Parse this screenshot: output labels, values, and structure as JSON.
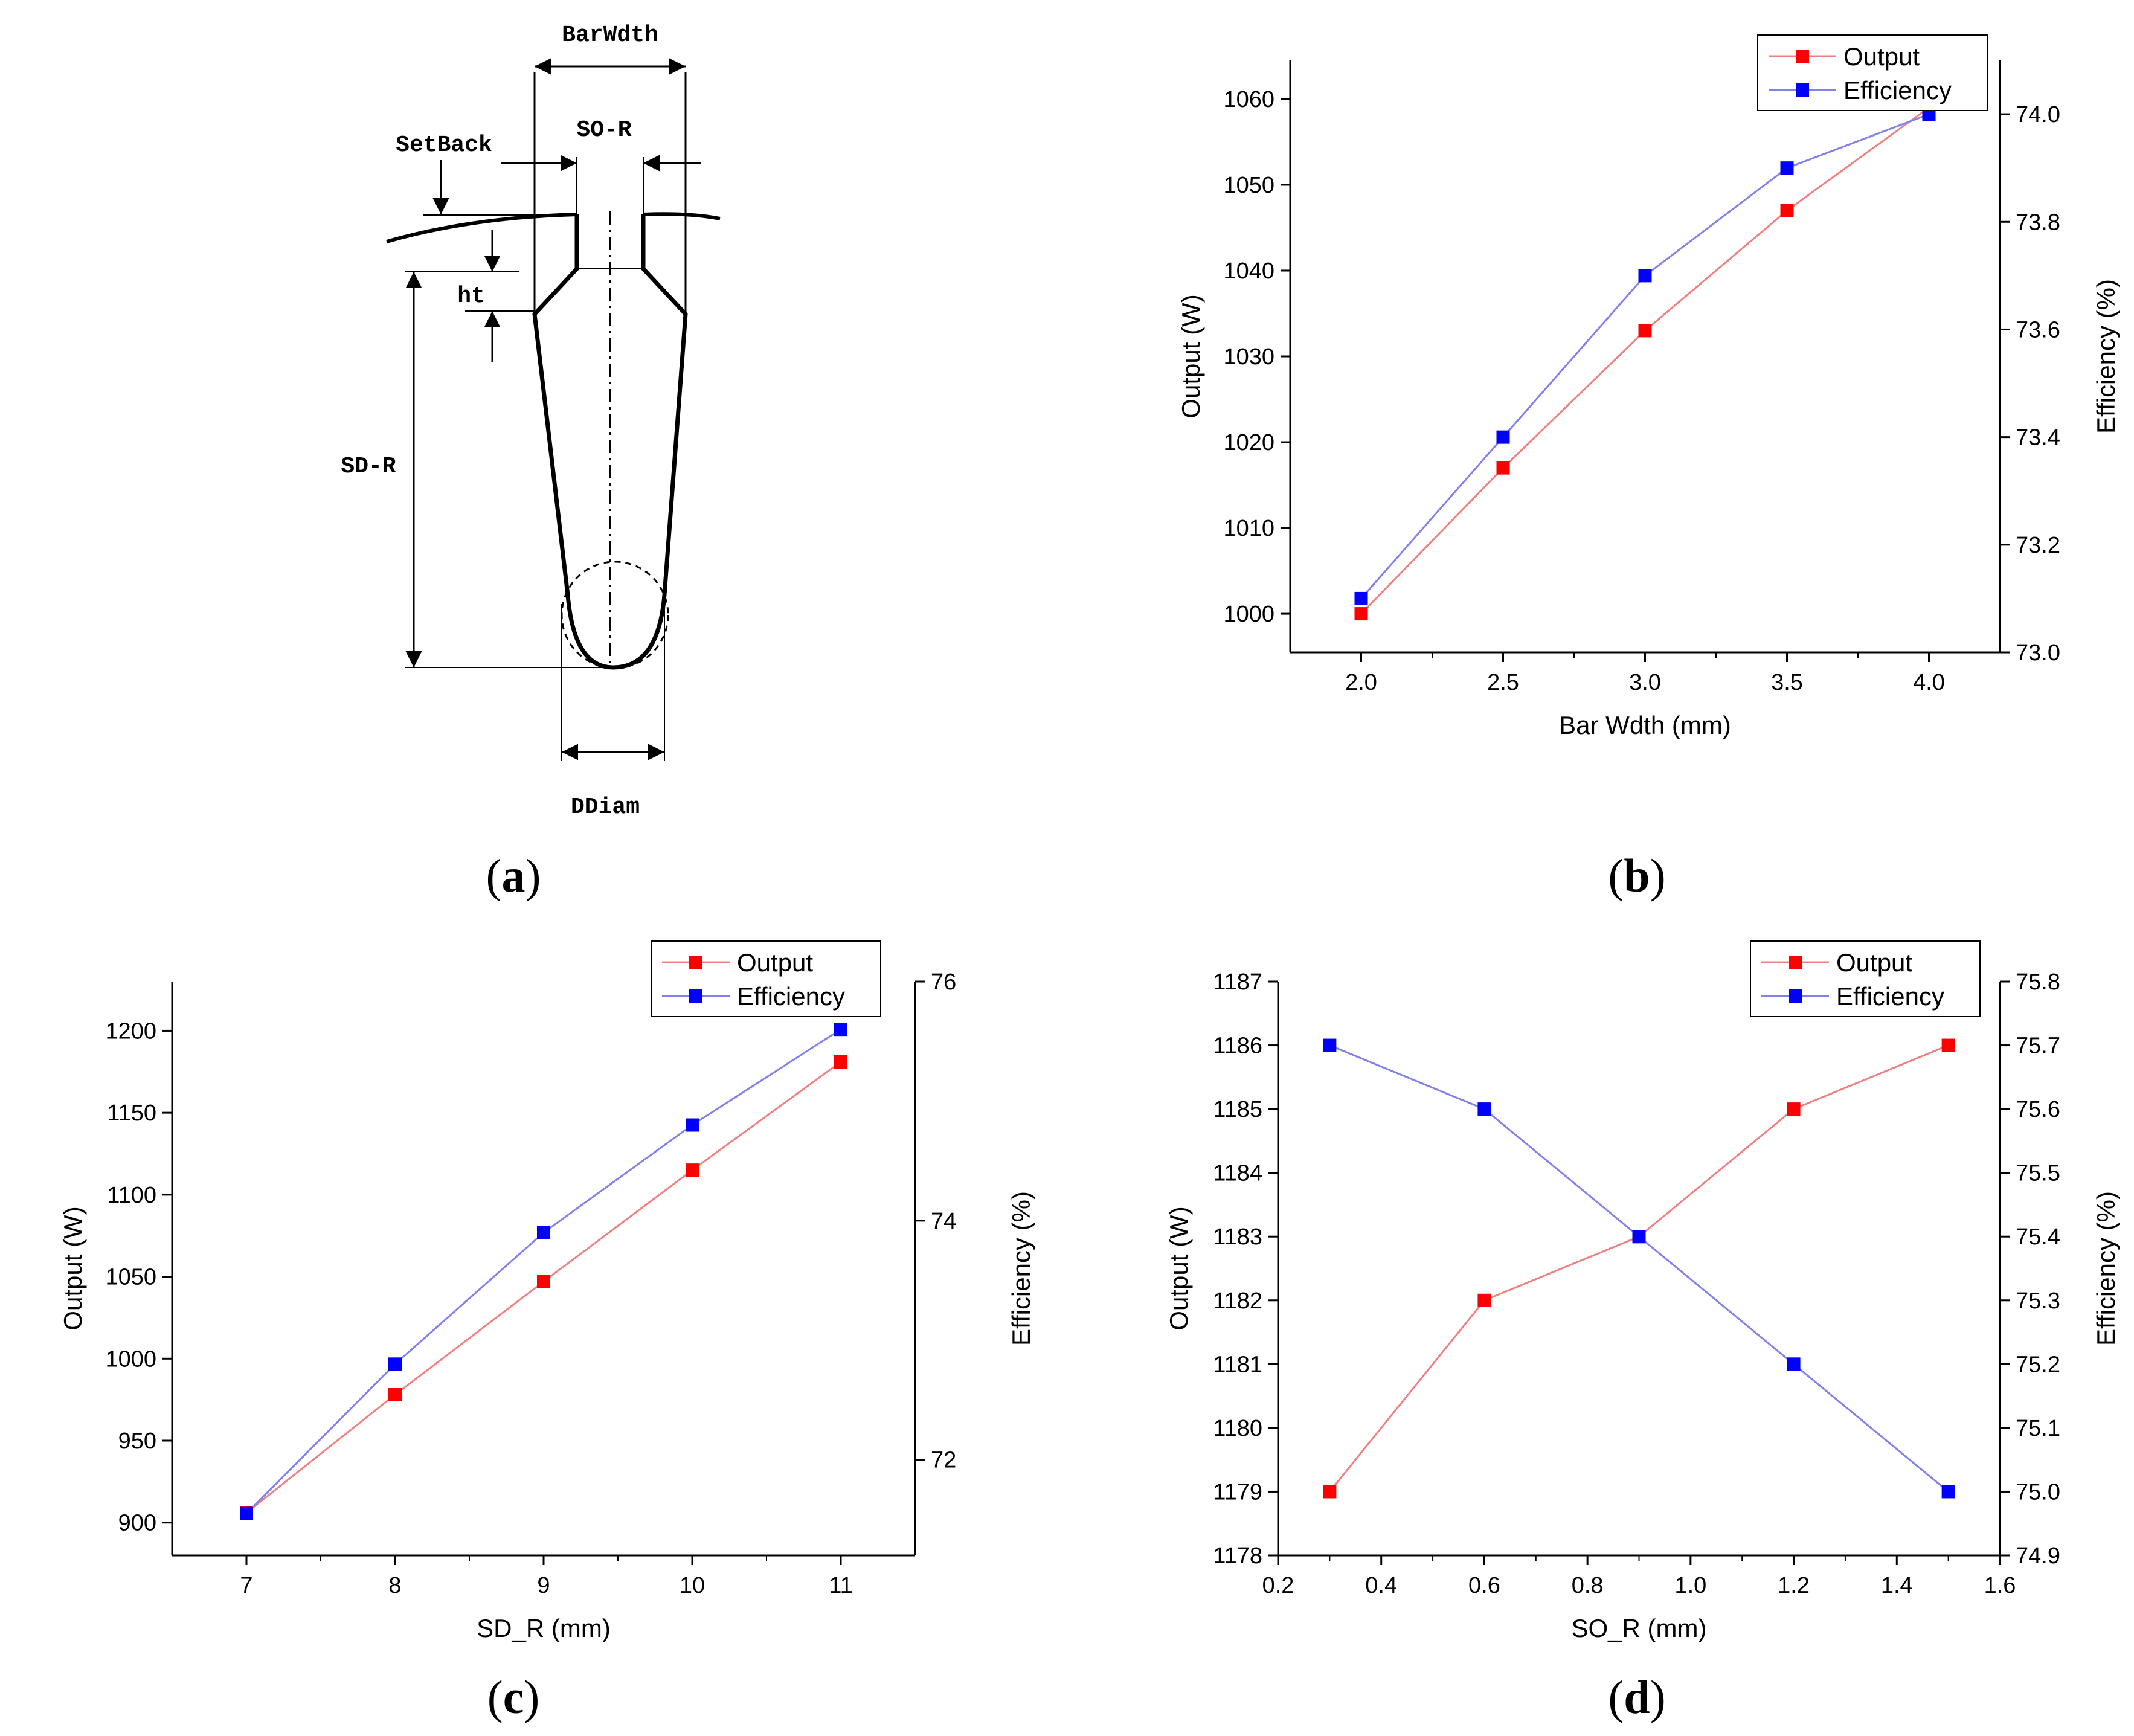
{
  "figure": {
    "panel_labels": {
      "a": "a",
      "b": "b",
      "c": "c",
      "d": "d"
    },
    "slot_diagram": {
      "labels": {
        "bar_width": "BarWdth",
        "slot_opening": "SO-R",
        "setback": "SetBack",
        "tooth_height": "ht",
        "slot_depth": "SD-R",
        "bottom_diameter": "DDiam"
      }
    }
  },
  "colors": {
    "output": "#ff0000",
    "efficiency": "#0000ff",
    "output_line": "#f08080",
    "efficiency_line": "#8080f0",
    "axis": "#000000"
  },
  "chart_data": [
    {
      "id": "b",
      "type": "line",
      "xlabel": "Bar Wdth (mm)",
      "ylabel_left": "Output (W)",
      "ylabel_right": "Efficiency (%)",
      "x": [
        2.0,
        2.5,
        3.0,
        3.5,
        4.0
      ],
      "series": [
        {
          "name": "Output",
          "axis": "left",
          "values": [
            1000,
            1017,
            1033,
            1047,
            1059
          ]
        },
        {
          "name": "Efficiency",
          "axis": "right",
          "values": [
            73.1,
            73.4,
            73.7,
            73.9,
            74.0
          ]
        }
      ],
      "xlim": [
        1.75,
        4.25
      ],
      "ylim_left": [
        995.5,
        1064.5
      ],
      "ylim_right": [
        73.0,
        74.1
      ],
      "xticks": [
        2.0,
        2.5,
        3.0,
        3.5,
        4.0
      ],
      "xtick_labels": [
        "2.0",
        "2.5",
        "3.0",
        "3.5",
        "4.0"
      ],
      "yticks_left": [
        1000,
        1010,
        1020,
        1030,
        1040,
        1050,
        1060
      ],
      "ytick_labels_left": [
        "1000",
        "1010",
        "1020",
        "1030",
        "1040",
        "1050",
        "1060"
      ],
      "yticks_right": [
        73.0,
        73.2,
        73.4,
        73.6,
        73.8,
        74.0
      ],
      "ytick_labels_right": [
        "73.0",
        "73.2",
        "73.4",
        "73.6",
        "73.8",
        "74.0"
      ],
      "legend": "top-right"
    },
    {
      "id": "c",
      "type": "line",
      "xlabel": "SD_R (mm)",
      "ylabel_left": "Output (W)",
      "ylabel_right": "Efficiency (%)",
      "x": [
        7,
        8,
        9,
        10,
        11
      ],
      "series": [
        {
          "name": "Output",
          "axis": "left",
          "values": [
            906,
            978,
            1047,
            1115,
            1181
          ]
        },
        {
          "name": "Efficiency",
          "axis": "right",
          "values": [
            71.55,
            72.8,
            73.9,
            74.8,
            75.6
          ]
        }
      ],
      "xlim": [
        6.5,
        11.5
      ],
      "ylim_left": [
        880,
        1230
      ],
      "ylim_right": [
        71.2,
        76.0
      ],
      "xticks": [
        7,
        8,
        9,
        10,
        11
      ],
      "xtick_labels": [
        "7",
        "8",
        "9",
        "10",
        "11"
      ],
      "yticks_left": [
        900,
        950,
        1000,
        1050,
        1100,
        1150,
        1200
      ],
      "ytick_labels_left": [
        "900",
        "950",
        "1000",
        "1050",
        "1100",
        "1150",
        "1200"
      ],
      "yticks_right": [
        72,
        74,
        76
      ],
      "ytick_labels_right": [
        "72",
        "74",
        "76"
      ],
      "legend": "top-right"
    },
    {
      "id": "d",
      "type": "line",
      "xlabel": "SO_R (mm)",
      "ylabel_left": "Output (W)",
      "ylabel_right": "Efficiency (%)",
      "x": [
        0.3,
        0.6,
        0.9,
        1.2,
        1.5
      ],
      "series": [
        {
          "name": "Output",
          "axis": "left",
          "values": [
            1179,
            1182,
            1183,
            1185,
            1186
          ]
        },
        {
          "name": "Efficiency",
          "axis": "right",
          "values": [
            75.7,
            75.6,
            75.4,
            75.2,
            75.0
          ]
        }
      ],
      "xlim": [
        0.2,
        1.6
      ],
      "ylim_left": [
        1178,
        1187
      ],
      "ylim_right": [
        74.9,
        75.8
      ],
      "xticks": [
        0.2,
        0.4,
        0.6,
        0.8,
        1.0,
        1.2,
        1.4,
        1.6
      ],
      "xtick_labels": [
        "0.2",
        "0.4",
        "0.6",
        "0.8",
        "1.0",
        "1.2",
        "1.4",
        "1.6"
      ],
      "yticks_left": [
        1178,
        1179,
        1180,
        1181,
        1182,
        1183,
        1184,
        1185,
        1186,
        1187
      ],
      "ytick_labels_left": [
        "1178",
        "1179",
        "1180",
        "1181",
        "1182",
        "1183",
        "1184",
        "1185",
        "1186",
        "1187"
      ],
      "yticks_right": [
        74.9,
        75.0,
        75.1,
        75.2,
        75.3,
        75.4,
        75.5,
        75.6,
        75.7,
        75.8
      ],
      "ytick_labels_right": [
        "74.9",
        "75.0",
        "75.1",
        "75.2",
        "75.3",
        "75.4",
        "75.5",
        "75.6",
        "75.7",
        "75.8"
      ],
      "legend": "top-right"
    }
  ]
}
